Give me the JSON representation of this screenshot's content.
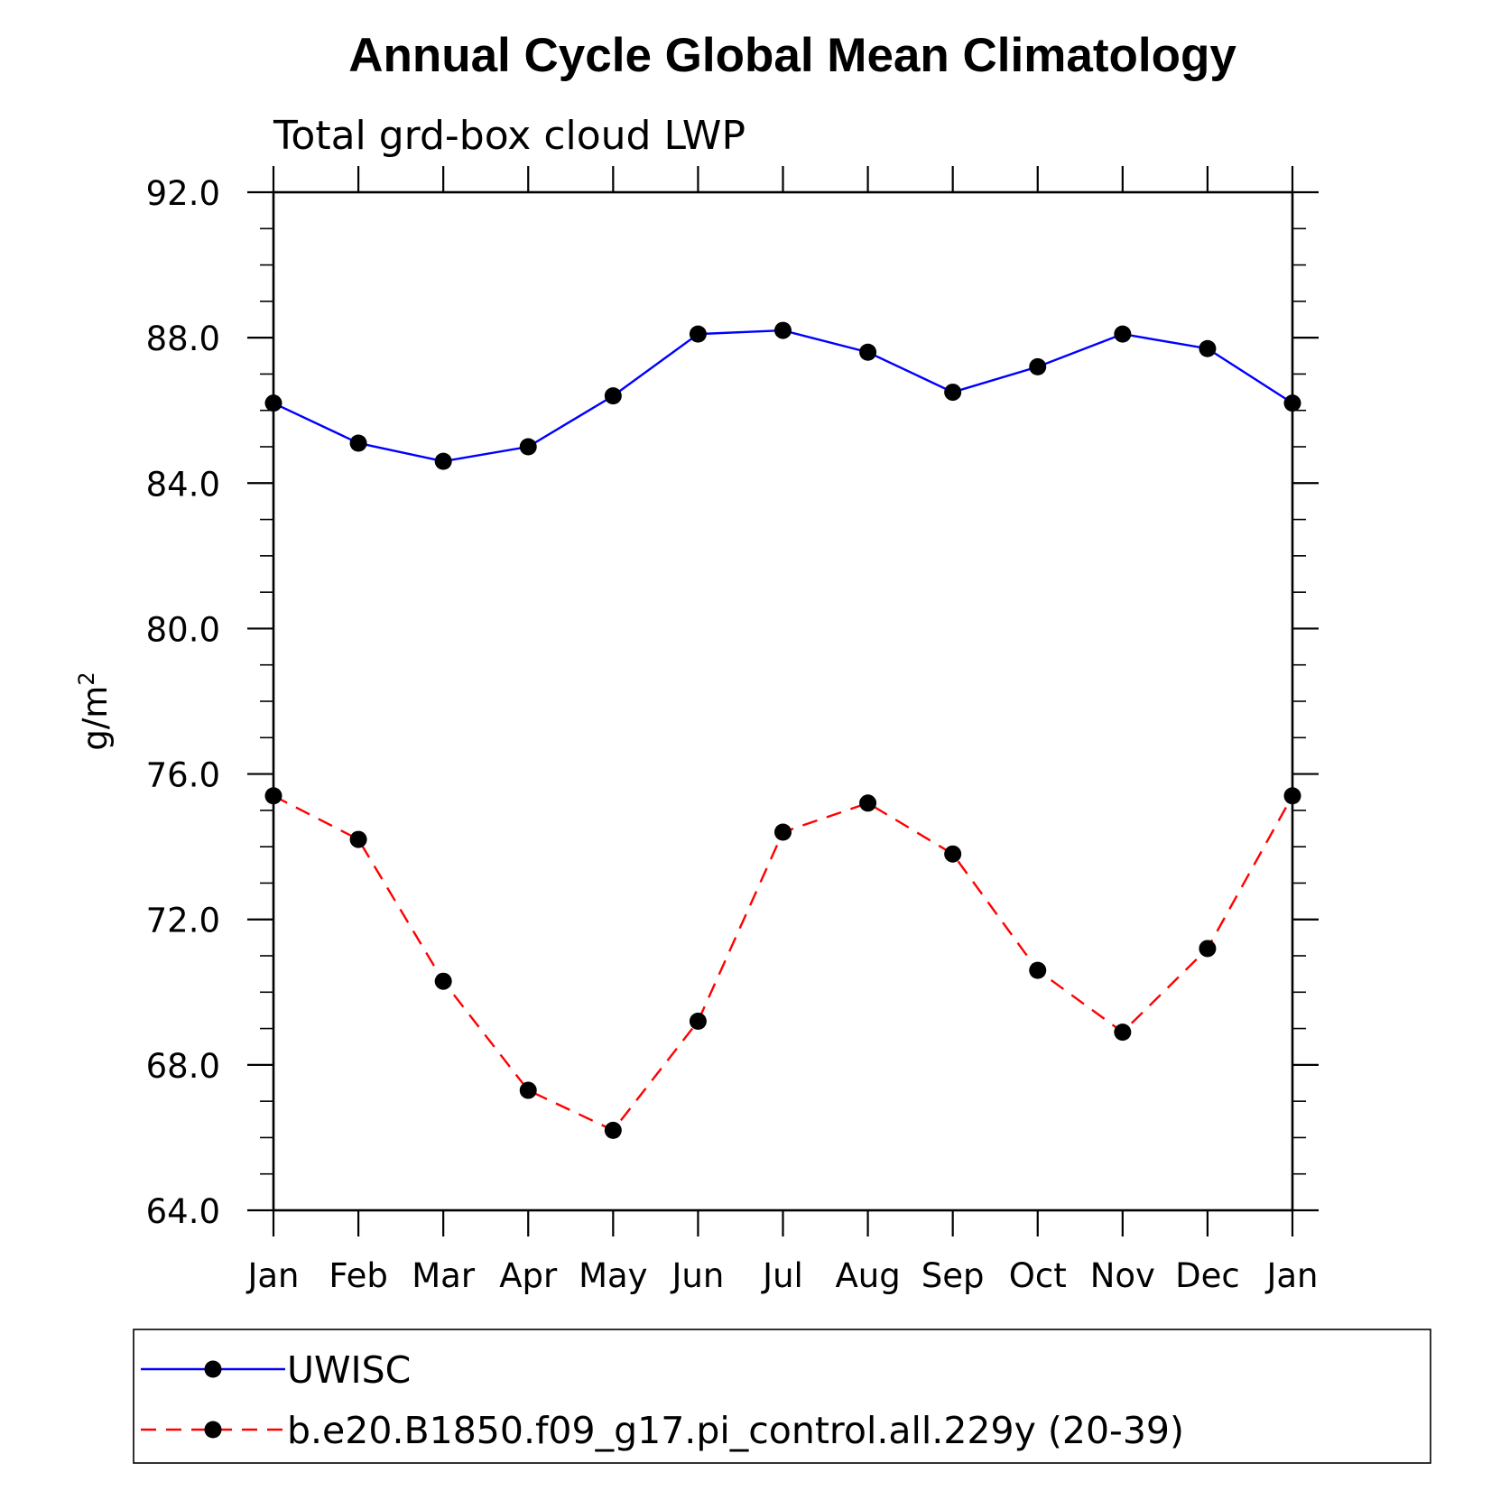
{
  "chart_data": {
    "type": "line",
    "title": "Annual Cycle Global Mean Climatology",
    "subtitle": "Total grd-box cloud LWP",
    "ylabel": "g/m",
    "ylabel_superscript": "2",
    "xlabel": "",
    "categories": [
      "Jan",
      "Feb",
      "Mar",
      "Apr",
      "May",
      "Jun",
      "Jul",
      "Aug",
      "Sep",
      "Oct",
      "Nov",
      "Dec",
      "Jan"
    ],
    "ylim": [
      64,
      92
    ],
    "yticks": [
      "64.0",
      "68.0",
      "72.0",
      "76.0",
      "80.0",
      "84.0",
      "88.0",
      "92.0"
    ],
    "grid": false,
    "legend_position": "bottom",
    "series": [
      {
        "name": "UWISC",
        "color": "#0000ff",
        "line_style": "solid",
        "marker": "filled-circle",
        "values": [
          86.2,
          85.1,
          84.6,
          85.0,
          86.4,
          88.1,
          88.2,
          87.6,
          86.5,
          87.2,
          88.1,
          87.7,
          86.2
        ]
      },
      {
        "name": "b.e20.B1850.f09_g17.pi_control.all.229y (20-39)",
        "color": "#ff0000",
        "line_style": "dashed",
        "marker": "filled-circle",
        "values": [
          75.4,
          74.2,
          70.3,
          67.3,
          66.2,
          69.2,
          74.4,
          75.2,
          73.8,
          70.6,
          68.9,
          71.2,
          75.4
        ]
      }
    ]
  }
}
